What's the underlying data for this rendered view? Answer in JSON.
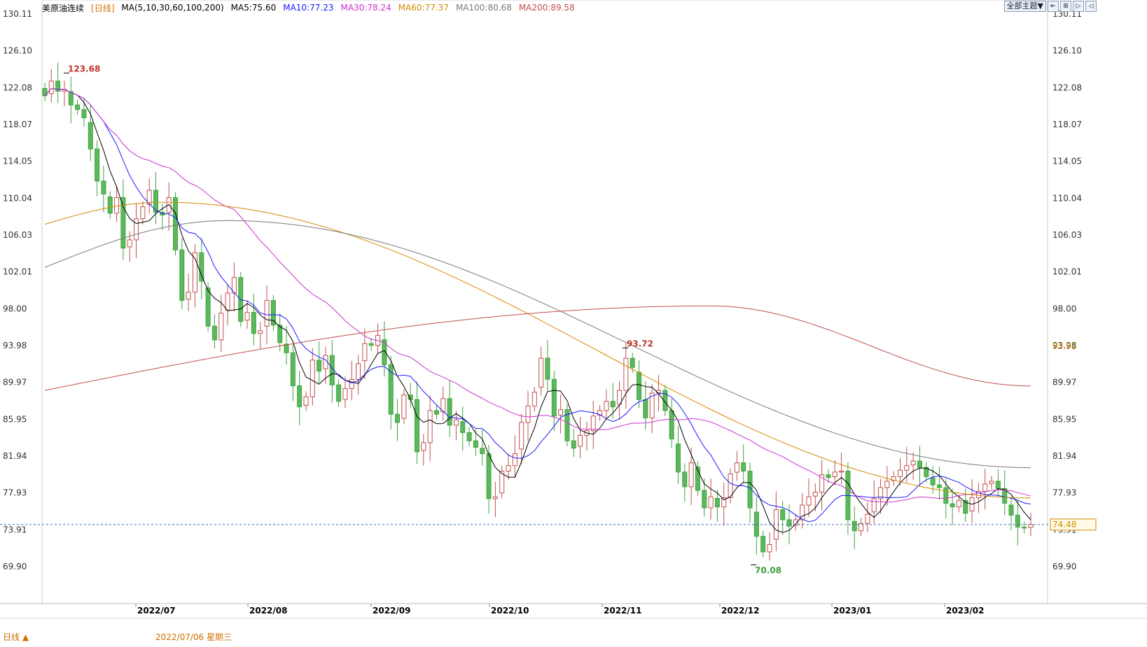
{
  "title": "美原油连续",
  "period_label": "[日线]",
  "ma_legend": [
    {
      "text": "MA(5,10,30,60,100,200)",
      "color": "#000000"
    },
    {
      "text": "MA5:75.60",
      "color": "#000000"
    },
    {
      "text": "MA10:77.23",
      "color": "#1a1aff"
    },
    {
      "text": "MA30:78.24",
      "color": "#cc33cc"
    },
    {
      "text": "MA60:77.37",
      "color": "#d48a00"
    },
    {
      "text": "MA100:80.68",
      "color": "#7a7a7a"
    },
    {
      "text": "MA200:89.58",
      "color": "#c0504d"
    }
  ],
  "controls": {
    "theme_button": "全部主题▼",
    "icons": [
      "move-left-icon",
      "zoom-icon",
      "play-icon",
      "prev-icon"
    ]
  },
  "bottom": {
    "period_tab": "日线 ▲",
    "cursor_date": "2022/07/06 星期三"
  },
  "chart_data": {
    "type": "candlestick",
    "title": "美原油连续 [日线]",
    "y_ticks": [
      "130.11",
      "126.10",
      "122.08",
      "118.07",
      "114.05",
      "110.04",
      "106.03",
      "102.01",
      "98.00",
      "93.98",
      "89.97",
      "85.95",
      "81.94",
      "77.93",
      "73.91",
      "69.90"
    ],
    "ylim": [
      69.9,
      130.11
    ],
    "x_labels": [
      "2022/07",
      "2022/08",
      "2022/09",
      "2022/10",
      "2022/11",
      "2022/12",
      "2023/01",
      "2023/02"
    ],
    "annotations": [
      {
        "text": "123.68",
        "value": 123.68,
        "type": "high",
        "color": "#c0392b"
      },
      {
        "text": "93.72",
        "value": 93.72,
        "type": "high",
        "color": "#c0392b"
      },
      {
        "text": "70.08",
        "value": 70.08,
        "type": "low",
        "color": "#3c9c3c"
      }
    ],
    "price_labels": [
      {
        "text": "93.91",
        "value": 93.91,
        "color": "#d48a00"
      },
      {
        "text": "74.48",
        "value": 74.48,
        "color": "#d48a00"
      }
    ],
    "last_price_line": 74.48,
    "closes": [
      121.2,
      122.8,
      121.7,
      121.9,
      120.2,
      119.7,
      118.8,
      115.4,
      111.9,
      110.5,
      108.4,
      110.1,
      104.6,
      105.5,
      107.8,
      109.1,
      110.9,
      108.5,
      108.2,
      110.1,
      104.4,
      98.9,
      99.8,
      104.1,
      101.0,
      96.1,
      94.6,
      97.5,
      99.7,
      101.4,
      96.6,
      97.6,
      95.3,
      95.6,
      98.9,
      96.2,
      94.3,
      93.2,
      89.6,
      87.3,
      88.4,
      92.4,
      91.2,
      92.9,
      89.7,
      87.9,
      89.3,
      90.3,
      92.0,
      94.2,
      94.0,
      95.1,
      91.9,
      86.5,
      85.6,
      88.6,
      88.1,
      82.4,
      83.4,
      86.9,
      86.5,
      88.2,
      85.3,
      85.9,
      84.5,
      83.6,
      82.9,
      82.2,
      77.3,
      77.5,
      80.3,
      80.9,
      82.2,
      85.6,
      87.4,
      88.9,
      92.6,
      90.3,
      86.3,
      87.0,
      83.6,
      82.8,
      84.2,
      84.7,
      86.3,
      86.9,
      87.9,
      87.3,
      89.1,
      92.6,
      91.6,
      88.1,
      86.1,
      88.8,
      89.1,
      86.9,
      83.8,
      80.2,
      78.6,
      81.2,
      78.2,
      76.3,
      77.5,
      76.4,
      77.4,
      80.0,
      81.2,
      80.3,
      76.3,
      73.2,
      71.5,
      72.3,
      76.1,
      75.0,
      74.3,
      75.0,
      76.6,
      77.5,
      78.0,
      79.9,
      79.6,
      80.2,
      80.3,
      75.0,
      73.8,
      74.6,
      75.6,
      77.3,
      78.5,
      79.2,
      79.7,
      80.4,
      80.9,
      81.4,
      80.7,
      79.7,
      78.8,
      78.5,
      76.8,
      76.4,
      77.1,
      75.7,
      77.4,
      78.1,
      78.9,
      79.2,
      78.4,
      76.8,
      75.5,
      74.2,
      74.1,
      74.48
    ],
    "ma_series": {
      "MA5": {
        "color": "#000000",
        "start": [
          117.5
        ],
        "end": 75.6
      },
      "MA10": {
        "color": "#1a1aff",
        "end": 77.23
      },
      "MA30": {
        "color": "#cc33cc",
        "end": 78.24
      },
      "MA60": {
        "color": "#d48a00",
        "end": 77.37
      },
      "MA100": {
        "color": "#7a7a7a",
        "end": 80.68
      },
      "MA200": {
        "color": "#c0504d",
        "end": 89.58
      }
    },
    "grid": false
  }
}
